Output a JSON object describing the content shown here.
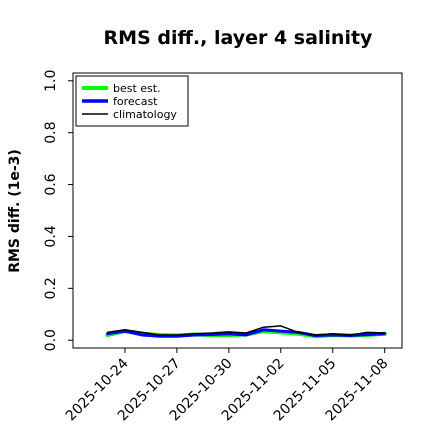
{
  "chart_data": {
    "type": "line",
    "title": "RMS diff., layer 4 salinity",
    "xlabel": "",
    "ylabel": "RMS diff. (1e-3)",
    "ylim": [
      -0.03,
      1.03
    ],
    "yticks": [
      0.0,
      0.2,
      0.4,
      0.6,
      0.8,
      1.0
    ],
    "ytick_labels": [
      "0.0",
      "0.2",
      "0.4",
      "0.6",
      "0.8",
      "1.0"
    ],
    "xlim": [
      "2025-10-21",
      "2025-11-09"
    ],
    "xticks": [
      "2025-10-24",
      "2025-10-27",
      "2025-10-30",
      "2025-11-02",
      "2025-11-05",
      "2025-11-08"
    ],
    "xtick_colors": [
      "#000000",
      "#000000",
      "#228b22",
      "#000000",
      "#000000",
      "#000000"
    ],
    "grid": false,
    "legend_position": "top-left",
    "series": [
      {
        "name": "best est.",
        "color": "#00ff00",
        "width": 4,
        "x": [
          "2025-10-23",
          "2025-10-24",
          "2025-10-25",
          "2025-10-26",
          "2025-10-27",
          "2025-10-28",
          "2025-10-29",
          "2025-10-30",
          "2025-10-31",
          "2025-11-01",
          "2025-11-02",
          "2025-11-03",
          "2025-11-04",
          "2025-11-05",
          "2025-11-06",
          "2025-11-07",
          "2025-11-08"
        ],
        "y": [
          0.02,
          0.035,
          0.025,
          0.02,
          0.018,
          0.022,
          0.02,
          0.02,
          0.022,
          0.035,
          0.03,
          0.025,
          0.015,
          0.02,
          0.018,
          0.02,
          0.025
        ]
      },
      {
        "name": "forecast",
        "color": "#0000ff",
        "width": 3,
        "x": [
          "2025-10-23",
          "2025-10-24",
          "2025-10-25",
          "2025-10-26",
          "2025-10-27",
          "2025-10-28",
          "2025-10-29",
          "2025-10-30",
          "2025-10-31",
          "2025-11-01",
          "2025-11-02",
          "2025-11-03",
          "2025-11-04",
          "2025-11-05",
          "2025-11-06",
          "2025-11-07",
          "2025-11-08"
        ],
        "y": [
          0.025,
          0.035,
          0.02,
          0.015,
          0.015,
          0.02,
          0.022,
          0.025,
          0.02,
          0.04,
          0.035,
          0.03,
          0.018,
          0.02,
          0.018,
          0.022,
          0.025
        ]
      },
      {
        "name": "climatology",
        "color": "#000000",
        "width": 1.5,
        "x": [
          "2025-10-23",
          "2025-10-24",
          "2025-10-25",
          "2025-10-26",
          "2025-10-27",
          "2025-10-28",
          "2025-10-29",
          "2025-10-30",
          "2025-10-31",
          "2025-11-01",
          "2025-11-02",
          "2025-11-03",
          "2025-11-04",
          "2025-11-05",
          "2025-11-06",
          "2025-11-07",
          "2025-11-08"
        ],
        "y": [
          0.03,
          0.04,
          0.03,
          0.02,
          0.02,
          0.025,
          0.028,
          0.032,
          0.028,
          0.05,
          0.055,
          0.03,
          0.02,
          0.025,
          0.02,
          0.03,
          0.028
        ]
      }
    ]
  }
}
